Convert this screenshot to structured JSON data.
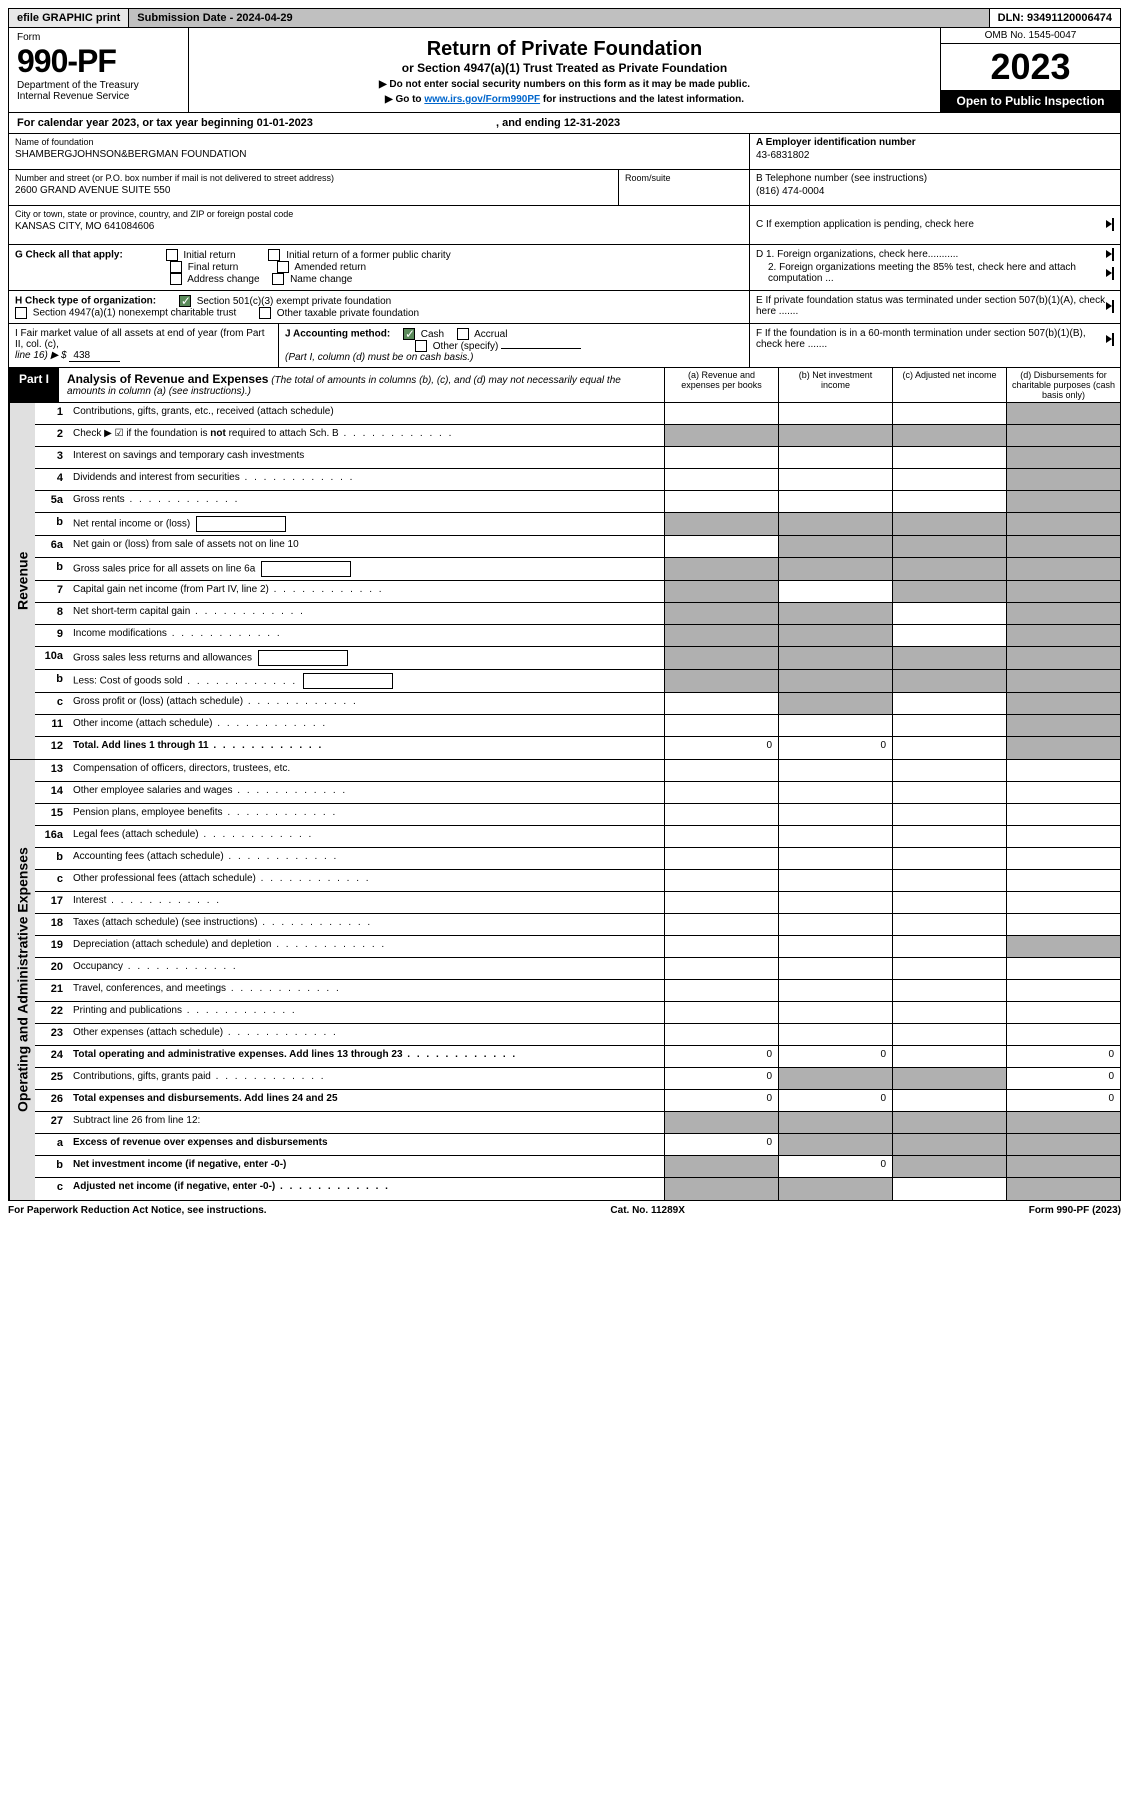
{
  "top": {
    "efile": "efile GRAPHIC print",
    "submission": "Submission Date - 2024-04-29",
    "dln": "DLN: 93491120006474"
  },
  "header": {
    "form_label": "Form",
    "form_number": "990-PF",
    "dept": "Department of the Treasury",
    "irs": "Internal Revenue Service",
    "title": "Return of Private Foundation",
    "subtitle": "or Section 4947(a)(1) Trust Treated as Private Foundation",
    "instr1": "▶ Do not enter social security numbers on this form as it may be made public.",
    "instr2": "▶ Go to ",
    "instr2_link": "www.irs.gov/Form990PF",
    "instr2_end": " for instructions and the latest information.",
    "omb": "OMB No. 1545-0047",
    "year": "2023",
    "open_public": "Open to Public Inspection"
  },
  "calendar": "For calendar year 2023, or tax year beginning 01-01-2023",
  "calendar_end": ", and ending 12-31-2023",
  "foundation": {
    "name_label": "Name of foundation",
    "name": "SHAMBERGJOHNSON&BERGMAN FOUNDATION",
    "addr_label": "Number and street (or P.O. box number if mail is not delivered to street address)",
    "addr": "2600 GRAND AVENUE SUITE 550",
    "room_label": "Room/suite",
    "city_label": "City or town, state or province, country, and ZIP or foreign postal code",
    "city": "KANSAS CITY, MO  641084606"
  },
  "right_info": {
    "a_label": "A Employer identification number",
    "a_value": "43-6831802",
    "b_label": "B Telephone number (see instructions)",
    "b_value": "(816) 474-0004",
    "c_label": "C If exemption application is pending, check here",
    "d1": "D 1. Foreign organizations, check here...........",
    "d2": "2. Foreign organizations meeting the 85% test, check here and attach computation ...",
    "e_label": "E  If private foundation status was terminated under section 507(b)(1)(A), check here .......",
    "f_label": "F  If the foundation is in a 60-month termination under section 507(b)(1)(B), check here ......."
  },
  "g": {
    "label": "G Check all that apply:",
    "initial": "Initial return",
    "initial_former": "Initial return of a former public charity",
    "final": "Final return",
    "amended": "Amended return",
    "addr_change": "Address change",
    "name_change": "Name change"
  },
  "h": {
    "label": "H Check type of organization:",
    "501c3": "Section 501(c)(3) exempt private foundation",
    "4947": "Section 4947(a)(1) nonexempt charitable trust",
    "other": "Other taxable private foundation"
  },
  "i": {
    "label": "I Fair market value of all assets at end of year (from Part II, col. (c),",
    "line16": "line 16) ▶ $",
    "value": "438"
  },
  "j": {
    "label": "J Accounting method:",
    "cash": "Cash",
    "accrual": "Accrual",
    "other": "Other (specify)",
    "note": "(Part I, column (d) must be on cash basis.)"
  },
  "part1": {
    "badge": "Part I",
    "title": "Analysis of Revenue and Expenses",
    "note": "(The total of amounts in columns (b), (c), and (d) may not necessarily equal the amounts in column (a) (see instructions).)",
    "col_a": "(a)   Revenue and expenses per books",
    "col_b": "(b)   Net investment income",
    "col_c": "(c)   Adjusted net income",
    "col_d": "(d)   Disbursements for charitable purposes (cash basis only)"
  },
  "revenue_label": "Revenue",
  "expenses_label": "Operating and Administrative Expenses",
  "rows": [
    {
      "num": "1",
      "label": "Contributions, gifts, grants, etc., received (attach schedule)",
      "shade": [
        "d"
      ]
    },
    {
      "num": "2",
      "label_html": "Check ▶ ☑ if the foundation is <b>not</b> required to attach Sch. B",
      "dotted": true,
      "shade": [
        "a",
        "b",
        "c",
        "d"
      ],
      "no_cols": true
    },
    {
      "num": "3",
      "label": "Interest on savings and temporary cash investments",
      "shade": [
        "d"
      ]
    },
    {
      "num": "4",
      "label": "Dividends and interest from securities",
      "dotted": true,
      "shade": [
        "d"
      ]
    },
    {
      "num": "5a",
      "label": "Gross rents",
      "dotted": true,
      "shade": [
        "d"
      ]
    },
    {
      "num": "b",
      "label": "Net rental income or (loss)",
      "input": true,
      "shade": [
        "a",
        "b",
        "c",
        "d"
      ]
    },
    {
      "num": "6a",
      "label": "Net gain or (loss) from sale of assets not on line 10",
      "shade": [
        "b",
        "c",
        "d"
      ]
    },
    {
      "num": "b",
      "label": "Gross sales price for all assets on line 6a",
      "input": true,
      "shade": [
        "a",
        "b",
        "c",
        "d"
      ]
    },
    {
      "num": "7",
      "label": "Capital gain net income (from Part IV, line 2)",
      "dotted": true,
      "shade": [
        "a",
        "c",
        "d"
      ]
    },
    {
      "num": "8",
      "label": "Net short-term capital gain",
      "dotted": true,
      "shade": [
        "a",
        "b",
        "d"
      ]
    },
    {
      "num": "9",
      "label": "Income modifications",
      "dotted": true,
      "shade": [
        "a",
        "b",
        "d"
      ]
    },
    {
      "num": "10a",
      "label": "Gross sales less returns and allowances",
      "input": true,
      "shade": [
        "a",
        "b",
        "c",
        "d"
      ]
    },
    {
      "num": "b",
      "label": "Less: Cost of goods sold",
      "dotted": true,
      "input": true,
      "shade": [
        "a",
        "b",
        "c",
        "d"
      ]
    },
    {
      "num": "c",
      "label": "Gross profit or (loss) (attach schedule)",
      "dotted": true,
      "shade": [
        "b",
        "d"
      ]
    },
    {
      "num": "11",
      "label": "Other income (attach schedule)",
      "dotted": true,
      "shade": [
        "d"
      ]
    },
    {
      "num": "12",
      "label": "Total. Add lines 1 through 11",
      "dotted": true,
      "bold": true,
      "a": "0",
      "b": "0",
      "shade": [
        "d"
      ]
    }
  ],
  "expense_rows": [
    {
      "num": "13",
      "label": "Compensation of officers, directors, trustees, etc."
    },
    {
      "num": "14",
      "label": "Other employee salaries and wages",
      "dotted": true
    },
    {
      "num": "15",
      "label": "Pension plans, employee benefits",
      "dotted": true
    },
    {
      "num": "16a",
      "label": "Legal fees (attach schedule)",
      "dotted": true
    },
    {
      "num": "b",
      "label": "Accounting fees (attach schedule)",
      "dotted": true
    },
    {
      "num": "c",
      "label": "Other professional fees (attach schedule)",
      "dotted": true
    },
    {
      "num": "17",
      "label": "Interest",
      "dotted": true
    },
    {
      "num": "18",
      "label": "Taxes (attach schedule) (see instructions)",
      "dotted": true
    },
    {
      "num": "19",
      "label": "Depreciation (attach schedule) and depletion",
      "dotted": true,
      "shade": [
        "d"
      ]
    },
    {
      "num": "20",
      "label": "Occupancy",
      "dotted": true
    },
    {
      "num": "21",
      "label": "Travel, conferences, and meetings",
      "dotted": true
    },
    {
      "num": "22",
      "label": "Printing and publications",
      "dotted": true
    },
    {
      "num": "23",
      "label": "Other expenses (attach schedule)",
      "dotted": true
    },
    {
      "num": "24",
      "label": "Total operating and administrative expenses. Add lines 13 through 23",
      "dotted": true,
      "bold": true,
      "a": "0",
      "b": "0",
      "d": "0"
    },
    {
      "num": "25",
      "label": "Contributions, gifts, grants paid",
      "dotted": true,
      "a": "0",
      "shade": [
        "b",
        "c"
      ],
      "d": "0"
    },
    {
      "num": "26",
      "label": "Total expenses and disbursements. Add lines 24 and 25",
      "bold": true,
      "a": "0",
      "b": "0",
      "d": "0"
    },
    {
      "num": "27",
      "label": "Subtract line 26 from line 12:",
      "shade": [
        "a",
        "b",
        "c",
        "d"
      ]
    },
    {
      "num": "a",
      "label": "Excess of revenue over expenses and disbursements",
      "bold": true,
      "a": "0",
      "shade": [
        "b",
        "c",
        "d"
      ]
    },
    {
      "num": "b",
      "label": "Net investment income (if negative, enter -0-)",
      "bold": true,
      "shade": [
        "a"
      ],
      "b": "0",
      "shade2": [
        "c",
        "d"
      ]
    },
    {
      "num": "c",
      "label": "Adjusted net income (if negative, enter -0-)",
      "dotted": true,
      "bold": true,
      "shade": [
        "a",
        "b",
        "d"
      ]
    }
  ],
  "footer": {
    "left": "For Paperwork Reduction Act Notice, see instructions.",
    "center": "Cat. No. 11289X",
    "right": "Form 990-PF (2023)"
  }
}
